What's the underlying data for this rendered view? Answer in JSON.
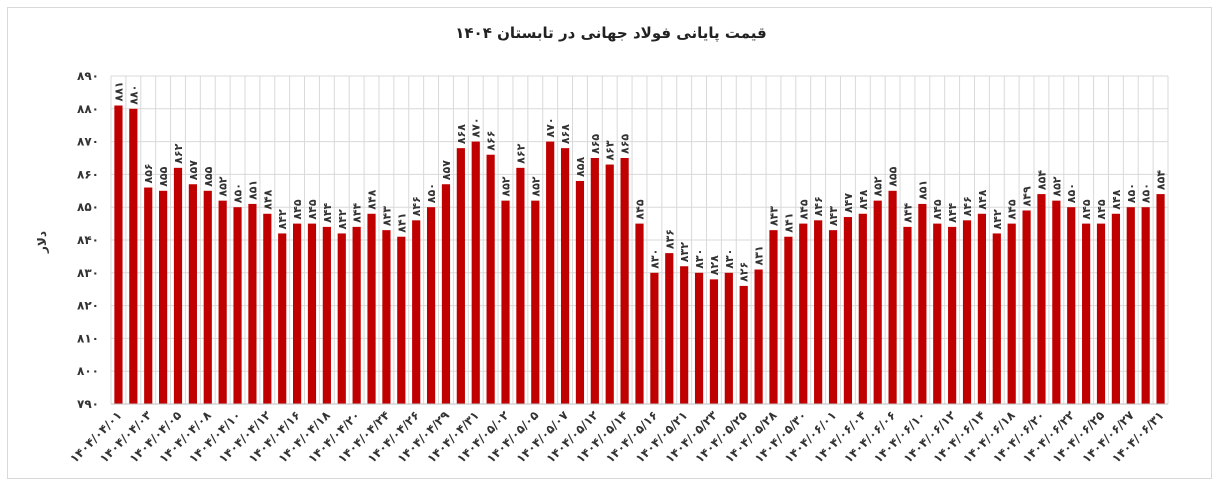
{
  "chart_data": {
    "type": "bar",
    "title": "قیمت پایانی فولاد جهانی در تابستان ۱۴۰۴",
    "ylabel": "دلار",
    "xlabel": "",
    "ylim": [
      790,
      890
    ],
    "yticks": [
      "۷۹۰",
      "۸۰۰",
      "۸۱۰",
      "۸۲۰",
      "۸۳۰",
      "۸۴۰",
      "۸۵۰",
      "۸۶۰",
      "۸۷۰",
      "۸۸۰",
      "۸۹۰"
    ],
    "ytick_values": [
      790,
      800,
      810,
      820,
      830,
      840,
      850,
      860,
      870,
      880,
      890
    ],
    "grid": true,
    "legend": "none",
    "bar_color": "#c00000",
    "grid_color": "#d9d9d9",
    "values": [
      881,
      880,
      856,
      855,
      862,
      857,
      855,
      852,
      850,
      851,
      848,
      842,
      845,
      845,
      844,
      842,
      844,
      848,
      843,
      841,
      846,
      850,
      857,
      868,
      870,
      866,
      852,
      862,
      852,
      870,
      868,
      858,
      865,
      863,
      865,
      845,
      830,
      836,
      832,
      830,
      828,
      830,
      826,
      831,
      843,
      841,
      845,
      846,
      843,
      847,
      848,
      852,
      855,
      844,
      851,
      845,
      844,
      846,
      848,
      842,
      845,
      849,
      854,
      852,
      850,
      845,
      845,
      848,
      850,
      850,
      854
    ],
    "value_labels": [
      "۸۸۱",
      "۸۸۰",
      "۸۵۶",
      "۸۵۵",
      "۸۶۲",
      "۸۵۷",
      "۸۵۵",
      "۸۵۲",
      "۸۵۰",
      "۸۵۱",
      "۸۴۸",
      "۸۴۲",
      "۸۴۵",
      "۸۴۵",
      "۸۴۴",
      "۸۴۲",
      "۸۴۴",
      "۸۴۸",
      "۸۴۳",
      "۸۴۱",
      "۸۴۶",
      "۸۵۰",
      "۸۵۷",
      "۸۶۸",
      "۸۷۰",
      "۸۶۶",
      "۸۵۲",
      "۸۶۲",
      "۸۵۲",
      "۸۷۰",
      "۸۶۸",
      "۸۵۸",
      "۸۶۵",
      "۸۶۳",
      "۸۶۵",
      "۸۴۵",
      "۸۳۰",
      "۸۳۶",
      "۸۳۲",
      "۸۳۰",
      "۸۲۸",
      "۸۳۰",
      "۸۲۶",
      "۸۳۱",
      "۸۴۳",
      "۸۴۱",
      "۸۴۵",
      "۸۴۶",
      "۸۴۳",
      "۸۴۷",
      "۸۴۸",
      "۸۵۲",
      "۸۵۵",
      "۸۴۴",
      "۸۵۱",
      "۸۴۵",
      "۸۴۴",
      "۸۴۶",
      "۸۴۸",
      "۸۴۲",
      "۸۴۵",
      "۸۴۹",
      "۸۵۴",
      "۸۵۲",
      "۸۵۰",
      "۸۴۵",
      "۸۴۵",
      "۸۴۸",
      "۸۵۰",
      "۸۵۰",
      "۸۵۴"
    ],
    "categories": [
      "۱۴۰۴/۰۴/۰۱",
      "",
      "۱۴۰۴/۰۴/۰۳",
      "",
      "۱۴۰۴/۰۴/۰۵",
      "",
      "۱۴۰۴/۰۴/۰۸",
      "",
      "۱۴۰۴/۰۴/۱۰",
      "",
      "۱۴۰۴/۰۴/۱۲",
      "",
      "۱۴۰۴/۰۴/۱۶",
      "",
      "۱۴۰۴/۰۴/۱۸",
      "",
      "۱۴۰۴/۰۴/۲۰",
      "",
      "۱۴۰۴/۰۴/۲۴",
      "",
      "۱۴۰۴/۰۴/۲۶",
      "",
      "۱۴۰۴/۰۴/۲۹",
      "",
      "۱۴۰۴/۰۴/۳۱",
      "",
      "۱۴۰۴/۰۵/۰۲",
      "",
      "۱۴۰۴/۰۵/۰۵",
      "",
      "۱۴۰۴/۰۵/۰۷",
      "",
      "۱۴۰۴/۰۵/۱۲",
      "",
      "۱۴۰۴/۰۵/۱۴",
      "",
      "۱۴۰۴/۰۵/۱۶",
      "",
      "۱۴۰۴/۰۵/۲۱",
      "",
      "۱۴۰۴/۰۵/۲۳",
      "",
      "۱۴۰۴/۰۵/۲۵",
      "",
      "۱۴۰۴/۰۵/۲۸",
      "",
      "۱۴۰۴/۰۵/۳۰",
      "",
      "۱۴۰۴/۰۶/۰۱",
      "",
      "۱۴۰۴/۰۶/۰۴",
      "",
      "۱۴۰۴/۰۶/۰۶",
      "",
      "۱۴۰۴/۰۶/۱۰",
      "",
      "۱۴۰۴/۰۶/۱۲",
      "",
      "۱۴۰۴/۰۶/۱۴",
      "",
      "۱۴۰۴/۰۶/۱۸",
      "",
      "۱۴۰۴/۰۶/۲۰",
      "",
      "۱۴۰۴/۰۶/۲۲",
      "",
      "۱۴۰۴/۰۶/۲۵",
      "",
      "۱۴۰۴/۰۶/۲۷",
      "",
      "۱۴۰۴/۰۶/۳۱"
    ]
  }
}
